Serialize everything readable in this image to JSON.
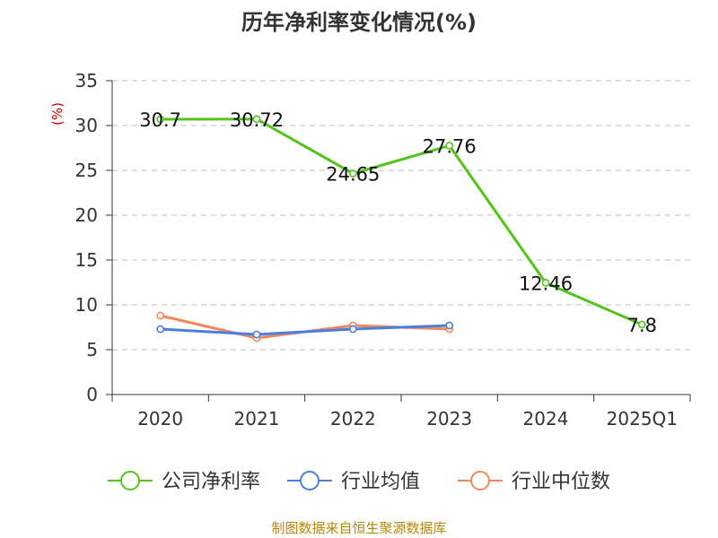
{
  "title": "历年净利率变化情况(%)",
  "source": "制图数据来自恒生聚源数据库",
  "chart_data": {
    "type": "line",
    "title": "历年净利率变化情况(%)",
    "xlabel": "",
    "ylabel": "(%)",
    "ylim": [
      0,
      35
    ],
    "yticks": [
      0,
      5,
      10,
      15,
      20,
      25,
      30,
      35
    ],
    "grid": true,
    "legend_position": "bottom",
    "categories": [
      "2020",
      "2021",
      "2022",
      "2023",
      "2024",
      "2025Q1"
    ],
    "series": [
      {
        "name": "公司净利率",
        "color": "#52c41a",
        "labels": true,
        "values": [
          30.7,
          30.72,
          24.65,
          27.76,
          12.46,
          7.8
        ],
        "label_text": [
          "30.7",
          "30.72",
          "24.65",
          "27.76",
          "12.46",
          "7.8"
        ]
      },
      {
        "name": "行业均值",
        "color": "#4a7fe0",
        "labels": false,
        "values": [
          7.3,
          6.7,
          7.3,
          7.7,
          null,
          null
        ]
      },
      {
        "name": "行业中位数",
        "color": "#f4875a",
        "labels": false,
        "values": [
          8.8,
          6.3,
          7.7,
          7.3,
          null,
          null
        ]
      }
    ]
  }
}
